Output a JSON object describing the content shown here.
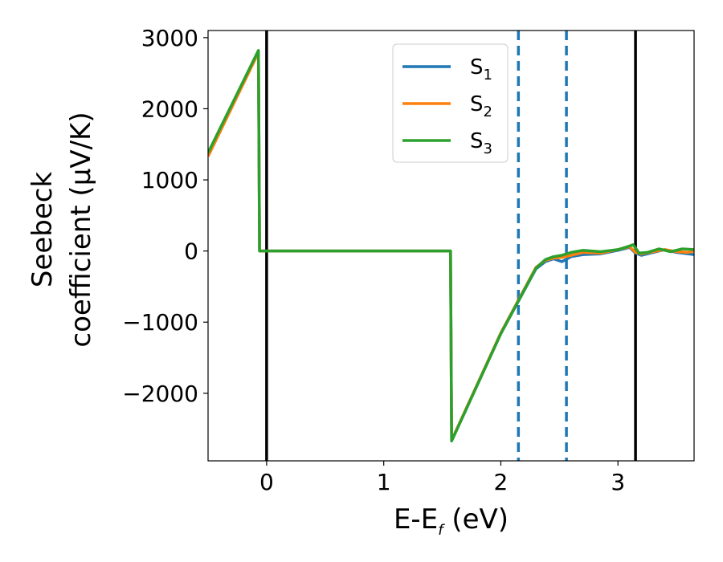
{
  "chart_data": {
    "type": "line",
    "xlabel": {
      "main": "E-E",
      "sub": "f",
      "rest": " (eV)"
    },
    "ylabel": {
      "line1": "Seebeck",
      "line2": "coefficient  (μV/K)"
    },
    "xlim": [
      -0.5,
      3.65
    ],
    "ylim": [
      -2950,
      3100
    ],
    "xticks": [
      {
        "value": 0,
        "label": "0"
      },
      {
        "value": 1,
        "label": "1"
      },
      {
        "value": 2,
        "label": "2"
      },
      {
        "value": 3,
        "label": "3"
      }
    ],
    "yticks": [
      {
        "value": 3000,
        "label": "3000"
      },
      {
        "value": 2000,
        "label": "2000"
      },
      {
        "value": 1000,
        "label": "1000"
      },
      {
        "value": 0,
        "label": "0"
      },
      {
        "value": -1000,
        "label": "−1000"
      },
      {
        "value": -2000,
        "label": "−2000"
      }
    ],
    "grid": false,
    "legend_position": "top-right",
    "series": [
      {
        "name": {
          "main": "S",
          "sub": "1"
        },
        "color": "#1f77b4",
        "points": [
          [
            -0.5,
            1350
          ],
          [
            -0.07,
            2800
          ],
          [
            -0.06,
            0
          ],
          [
            1.57,
            0
          ],
          [
            1.58,
            -2670
          ],
          [
            2.0,
            -1160
          ],
          [
            2.3,
            -250
          ],
          [
            2.38,
            -150
          ],
          [
            2.45,
            -110
          ],
          [
            2.52,
            -150
          ],
          [
            2.6,
            -80
          ],
          [
            2.7,
            -50
          ],
          [
            2.85,
            -40
          ],
          [
            3.0,
            10
          ],
          [
            3.1,
            50
          ],
          [
            3.15,
            -30
          ],
          [
            3.2,
            -60
          ],
          [
            3.3,
            -20
          ],
          [
            3.4,
            20
          ],
          [
            3.5,
            -20
          ],
          [
            3.6,
            -40
          ],
          [
            3.65,
            -50
          ]
        ]
      },
      {
        "name": {
          "main": "S",
          "sub": "2"
        },
        "color": "#ff7f0e",
        "points": [
          [
            -0.5,
            1330
          ],
          [
            -0.07,
            2790
          ],
          [
            -0.06,
            0
          ],
          [
            1.57,
            0
          ],
          [
            1.58,
            -2660
          ],
          [
            2.0,
            -1150
          ],
          [
            2.3,
            -230
          ],
          [
            2.38,
            -130
          ],
          [
            2.45,
            -100
          ],
          [
            2.52,
            -90
          ],
          [
            2.6,
            -60
          ],
          [
            2.7,
            -20
          ],
          [
            2.85,
            -30
          ],
          [
            3.0,
            20
          ],
          [
            3.1,
            60
          ],
          [
            3.15,
            -20
          ],
          [
            3.2,
            -40
          ],
          [
            3.3,
            -10
          ],
          [
            3.4,
            20
          ],
          [
            3.5,
            -10
          ],
          [
            3.6,
            -20
          ],
          [
            3.65,
            0
          ]
        ]
      },
      {
        "name": {
          "main": "S",
          "sub": "3"
        },
        "color": "#2ca02c",
        "points": [
          [
            -0.5,
            1380
          ],
          [
            -0.07,
            2820
          ],
          [
            -0.06,
            0
          ],
          [
            1.57,
            0
          ],
          [
            1.58,
            -2670
          ],
          [
            2.0,
            -1160
          ],
          [
            2.3,
            -240
          ],
          [
            2.38,
            -120
          ],
          [
            2.45,
            -80
          ],
          [
            2.52,
            -60
          ],
          [
            2.6,
            -20
          ],
          [
            2.7,
            10
          ],
          [
            2.85,
            -10
          ],
          [
            3.0,
            20
          ],
          [
            3.1,
            70
          ],
          [
            3.13,
            90
          ],
          [
            3.18,
            -30
          ],
          [
            3.25,
            -20
          ],
          [
            3.35,
            30
          ],
          [
            3.45,
            -10
          ],
          [
            3.55,
            30
          ],
          [
            3.65,
            20
          ]
        ]
      }
    ],
    "vlines": [
      {
        "x": 0.0,
        "color": "#000000",
        "style": "solid"
      },
      {
        "x": 2.15,
        "color": "#1f77b4",
        "style": "dashed"
      },
      {
        "x": 2.56,
        "color": "#1f77b4",
        "style": "dashed"
      },
      {
        "x": 3.15,
        "color": "#000000",
        "style": "solid"
      }
    ]
  }
}
